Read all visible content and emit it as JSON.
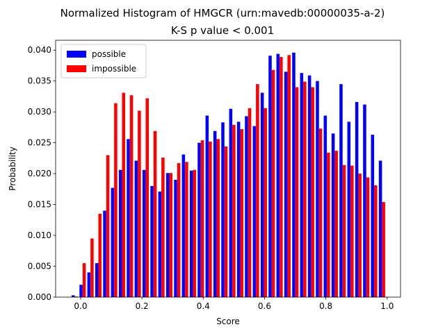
{
  "chart_data": {
    "type": "histogram",
    "title": "Normalized Histogram of HMGCR (urn:mavedb:00000035-a-2)",
    "subtitle": "K-S p value < 0.001",
    "x_label": "Score",
    "y_label": "Probability",
    "bins": [
      -0.032,
      -0.0063,
      0.0194,
      0.0451,
      0.0708,
      0.0965,
      0.1222,
      0.1479,
      0.1736,
      0.1993,
      0.225,
      0.2507,
      0.2764,
      0.3021,
      0.3278,
      0.3535,
      0.3792,
      0.4049,
      0.4306,
      0.4563,
      0.482,
      0.5077,
      0.5334,
      0.5591,
      0.5848,
      0.6105,
      0.6362,
      0.6619,
      0.6876,
      0.7133,
      0.739,
      0.7647,
      0.7904,
      0.8161,
      0.8418,
      0.8675,
      0.8932,
      0.9189,
      0.9446,
      0.9703,
      0.996
    ],
    "series": [
      {
        "name": "possible",
        "color": "#0000ff",
        "values": [
          0.0003,
          0.002,
          0.004,
          0.0055,
          0.014,
          0.0177,
          0.0206,
          0.0256,
          0.0221,
          0.0206,
          0.018,
          0.0171,
          0.0201,
          0.019,
          0.0231,
          0.0205,
          0.025,
          0.0294,
          0.0269,
          0.0283,
          0.0305,
          0.0284,
          0.0293,
          0.0277,
          0.0331,
          0.0391,
          0.0394,
          0.0365,
          0.0396,
          0.0363,
          0.0359,
          0.035,
          0.0294,
          0.0265,
          0.0345,
          0.0284,
          0.0316,
          0.0312,
          0.0263,
          0.0221
        ]
      },
      {
        "name": "impossible",
        "color": "#ff0000",
        "values": [
          0.0001,
          0.0055,
          0.0095,
          0.0135,
          0.023,
          0.0314,
          0.0331,
          0.0327,
          0.0302,
          0.0322,
          0.0269,
          0.0226,
          0.0201,
          0.0217,
          0.0219,
          0.0206,
          0.0254,
          0.0252,
          0.0256,
          0.0244,
          0.0279,
          0.0272,
          0.0306,
          0.0345,
          0.0306,
          0.0368,
          0.0389,
          0.0392,
          0.034,
          0.0349,
          0.034,
          0.0273,
          0.0234,
          0.0237,
          0.0214,
          0.0213,
          0.02,
          0.0194,
          0.0181,
          0.0154
        ]
      }
    ],
    "xlim": [
      -0.0815,
      1.0435
    ],
    "ylim": [
      0,
      0.0416
    ],
    "xticks": [
      {
        "value": 0,
        "label": "0.0"
      },
      {
        "value": 0.2,
        "label": "0.2"
      },
      {
        "value": 0.4,
        "label": "0.4"
      },
      {
        "value": 0.6,
        "label": "0.6"
      },
      {
        "value": 0.8,
        "label": "0.8"
      },
      {
        "value": 1,
        "label": "1.0"
      }
    ],
    "yticks": [
      {
        "value": 0,
        "label": "0.000"
      },
      {
        "value": 0.005,
        "label": "0.005"
      },
      {
        "value": 0.01,
        "label": "0.010"
      },
      {
        "value": 0.015,
        "label": "0.015"
      },
      {
        "value": 0.02,
        "label": "0.020"
      },
      {
        "value": 0.025,
        "label": "0.025"
      },
      {
        "value": 0.03,
        "label": "0.030"
      },
      {
        "value": 0.035,
        "label": "0.035"
      },
      {
        "value": 0.04,
        "label": "0.040"
      }
    ],
    "legend": "upper left"
  }
}
